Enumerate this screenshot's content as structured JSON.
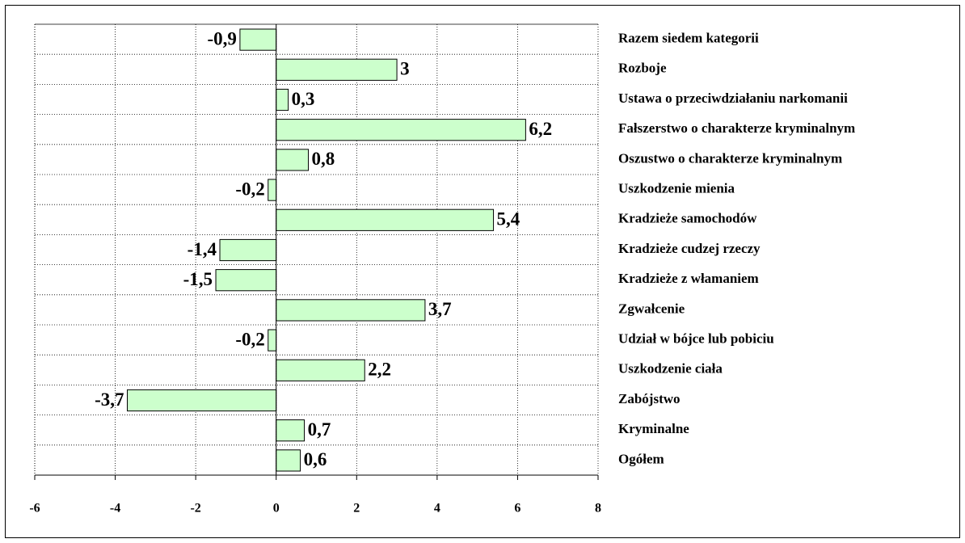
{
  "chart_data": {
    "type": "barh",
    "categories": [
      "Razem siedem kategorii",
      "Rozboje",
      "Ustawa o przeciwdziałaniu narkomanii",
      "Fałszerstwo o charakterze kryminalnym",
      "Oszustwo o charakterze kryminalnym",
      "Uszkodzenie mienia",
      "Kradzieże samochodów",
      "Kradzieże cudzej rzeczy",
      "Kradzieże z włamaniem",
      "Zgwałcenie",
      "Udział w bójce lub pobiciu",
      "Uszkodzenie ciała",
      "Zabójstwo",
      "Kryminalne",
      "Ogółem"
    ],
    "values": [
      -0.9,
      3,
      0.3,
      6.2,
      0.8,
      -0.2,
      5.4,
      -1.4,
      -1.5,
      3.7,
      -0.2,
      2.2,
      -3.7,
      0.7,
      0.6
    ],
    "value_labels": [
      "-0,9",
      "3",
      "0,3",
      "6,2",
      "0,8",
      "-0,2",
      "5,4",
      "-1,4",
      "-1,5",
      "3,7",
      "-0,2",
      "2,2",
      "-3,7",
      "0,7",
      "0,6"
    ],
    "color": "#ccffcc",
    "xlim": [
      -6,
      8
    ],
    "xticks": [
      -6,
      -4,
      -2,
      0,
      2,
      4,
      6,
      8
    ],
    "grid": true
  }
}
